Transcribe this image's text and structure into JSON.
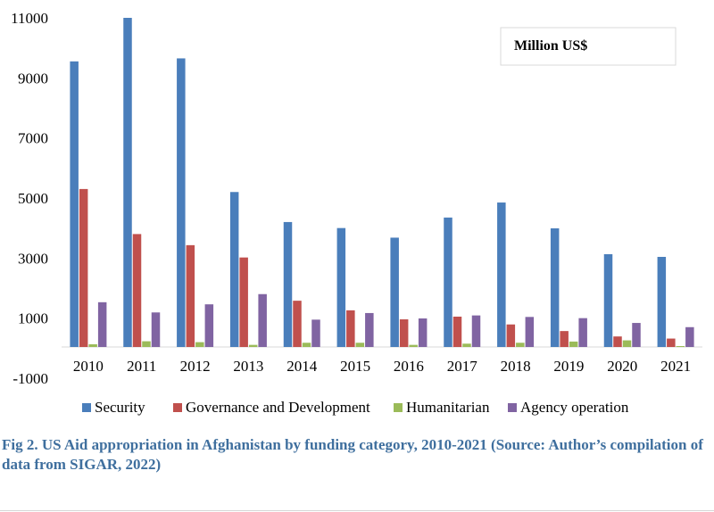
{
  "chart_data": {
    "type": "bar",
    "categories": [
      "2010",
      "2011",
      "2012",
      "2013",
      "2014",
      "2015",
      "2016",
      "2017",
      "2018",
      "2019",
      "2020",
      "2021"
    ],
    "series": [
      {
        "name": "Security",
        "color": "#4a7ebb",
        "values": [
          9550,
          11000,
          9650,
          5200,
          4200,
          4000,
          3680,
          4350,
          4850,
          3990,
          3130,
          3040
        ]
      },
      {
        "name": "Governance and Development",
        "color": "#c0504d",
        "values": [
          5300,
          3800,
          3430,
          3020,
          1580,
          1260,
          960,
          1050,
          790,
          570,
          390,
          320
        ]
      },
      {
        "name": "Humanitarian",
        "color": "#9bbb59",
        "values": [
          130,
          230,
          200,
          110,
          180,
          180,
          110,
          150,
          180,
          220,
          260,
          20
        ]
      },
      {
        "name": "Agency operation",
        "color": "#8064a2",
        "values": [
          1530,
          1190,
          1460,
          1800,
          950,
          1170,
          990,
          1090,
          1040,
          1000,
          840,
          700
        ]
      }
    ],
    "yticks": [
      -1000,
      1000,
      3000,
      5000,
      7000,
      9000,
      11000
    ],
    "ylim": [
      -1000,
      11000
    ],
    "grid": false,
    "legend_position": "bottom",
    "unit_note": "Million US$"
  },
  "caption": "Fig 2. US Aid appropriation in Afghanistan by funding category, 2010-2021 (Source: Author’s compilation of data from SIGAR, 2022)"
}
